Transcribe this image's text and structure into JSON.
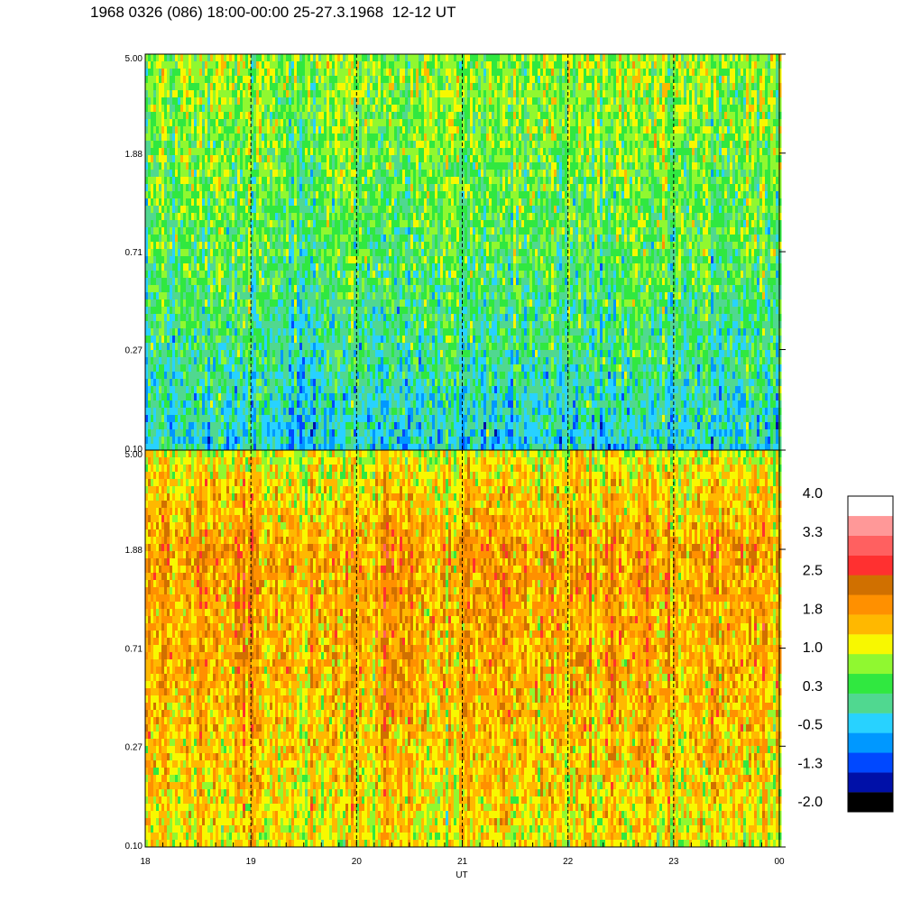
{
  "title": "1968 0326 (086) 18:00-00:00 25-27.3.1968  12-12 UT",
  "chart_data": [
    {
      "type": "heatmap",
      "panel": "upper",
      "title": "",
      "xlabel": "UT",
      "ylabel": "",
      "x_ticks": [
        "18",
        "19",
        "20",
        "21",
        "22",
        "23",
        "00"
      ],
      "xlim": [
        18,
        24
      ],
      "y_ticks": [
        "0.10",
        "0.27",
        "0.71",
        "1.88",
        "5.00"
      ],
      "y_scale": "log",
      "ylim": [
        0.1,
        5.0
      ],
      "dominant_level_by_frequency": {
        "5.00": 0.8,
        "1.88": 0.6,
        "0.71": 0.4,
        "0.27": 0.1,
        "0.10": -0.3
      },
      "grid": "vertical dashed lines at each hour"
    },
    {
      "type": "heatmap",
      "panel": "lower",
      "title": "",
      "xlabel": "UT",
      "ylabel": "",
      "x_ticks": [
        "18",
        "19",
        "20",
        "21",
        "22",
        "23",
        "00"
      ],
      "xlim": [
        18,
        24
      ],
      "y_ticks": [
        "0.10",
        "0.27",
        "0.71",
        "1.88",
        "5.00"
      ],
      "y_scale": "log",
      "ylim": [
        0.1,
        5.0
      ],
      "dominant_level_by_frequency": {
        "5.00": 1.1,
        "1.88": 1.8,
        "0.71": 1.7,
        "0.27": 1.5,
        "0.10": 1.2
      },
      "grid": "vertical dashed lines at each hour"
    }
  ],
  "colorbar": {
    "labels": [
      "4.0",
      "3.3",
      "2.5",
      "1.8",
      "1.0",
      "0.3",
      "-0.5",
      "-1.3",
      "-2.0"
    ],
    "range": [
      -2.0,
      4.0
    ],
    "colors": [
      "#000000",
      "#0010a8",
      "#0048ff",
      "#0098ff",
      "#28d2ff",
      "#50d890",
      "#30e840",
      "#90f830",
      "#f8f800",
      "#ffb800",
      "#ff9000",
      "#d07000",
      "#ff3030",
      "#ff6060",
      "#ff9898",
      "#ffffff"
    ]
  }
}
